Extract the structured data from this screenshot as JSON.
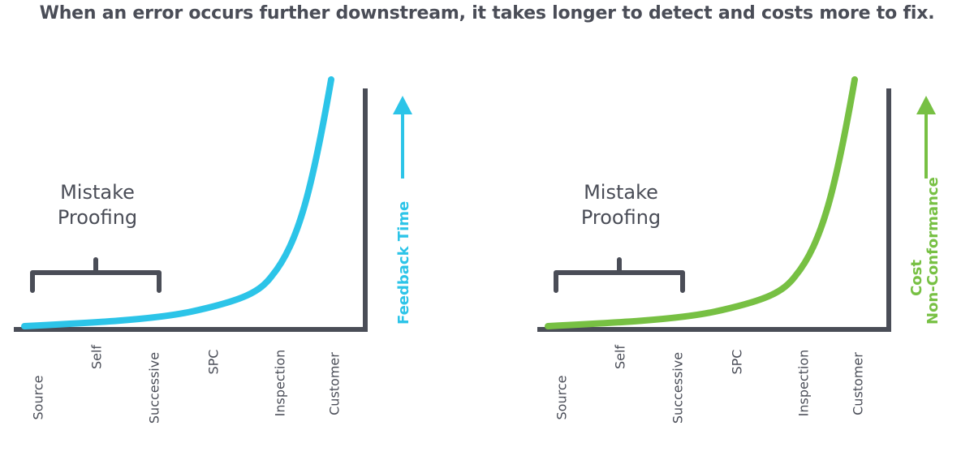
{
  "headline": "When an error occurs further downstream, it takes longer to detect and costs more to fix.",
  "colors": {
    "text": "#4a4d57",
    "axis": "#4a4d57",
    "bracket": "#4a4d57",
    "blue": "#2cc4e8",
    "green": "#77c043"
  },
  "panels": [
    {
      "color": "#2cc4e8",
      "zone_label_line1": "Mistake",
      "zone_label_line2": "Proofing",
      "axis_title_line1": "Feedback Time",
      "axis_title_line2": "",
      "categories": [
        "Source",
        "Self",
        "Successive",
        "SPC",
        "Inspection",
        "Customer"
      ],
      "icons": [
        "up-arrow-icon",
        "curly-bracket-icon"
      ]
    },
    {
      "color": "#77c043",
      "zone_label_line1": "Mistake",
      "zone_label_line2": "Proofing",
      "axis_title_line1": "Cost",
      "axis_title_line2": "Non-Conformance",
      "categories": [
        "Source",
        "Self",
        "Successive",
        "SPC",
        "Inspection",
        "Customer"
      ],
      "icons": [
        "up-arrow-icon",
        "curly-bracket-icon"
      ]
    }
  ]
}
